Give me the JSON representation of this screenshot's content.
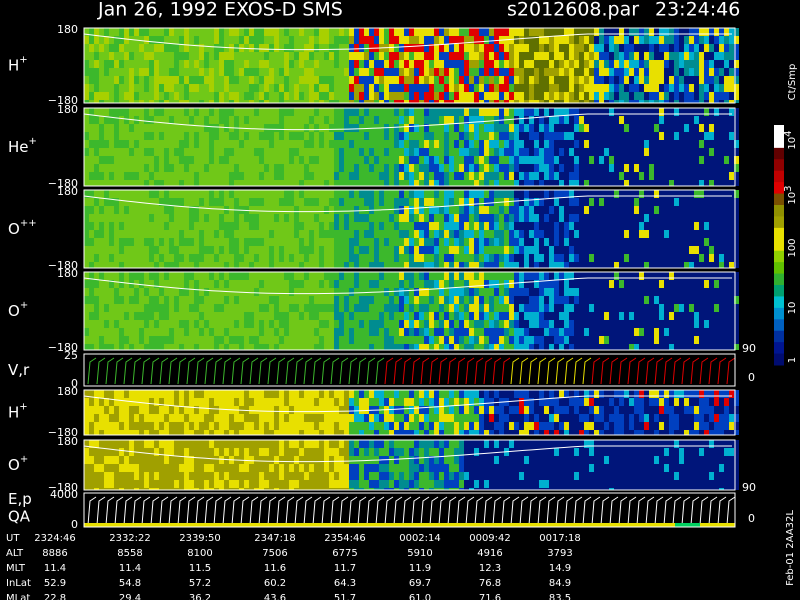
{
  "header": {
    "title": "Jan 26, 1992   EXOS-D SMS",
    "file": "s2012608.par",
    "time": "23:24:46"
  },
  "panels": [
    {
      "label": "H",
      "charge": "+",
      "top": "180",
      "bottom": "−180"
    },
    {
      "label": "He",
      "charge": "+",
      "top": "180",
      "bottom": "−180"
    },
    {
      "label": "O",
      "charge": "++",
      "top": "180",
      "bottom": "−180"
    },
    {
      "label": "O",
      "charge": "+",
      "top": "180",
      "bottom": "−180"
    },
    {
      "label": "V,r",
      "top": "25",
      "bottom": "0",
      "right_top": "90",
      "right_bottom": "0"
    },
    {
      "label": "H",
      "charge": "+",
      "top": "180",
      "bottom": "−180"
    },
    {
      "label": "O",
      "charge": "+",
      "top": "180",
      "bottom": "−180"
    },
    {
      "label": "E,p",
      "label2": "QA",
      "top": "4000",
      "bottom": "0",
      "right_top": "90",
      "right_bottom": "0"
    }
  ],
  "colorbar": {
    "unit": "Ct/Smp",
    "labels": [
      {
        "base": "10",
        "exp": "4"
      },
      {
        "base": "10",
        "exp": "3"
      },
      {
        "base": "100"
      },
      {
        "base": "10"
      },
      {
        "base": "1"
      }
    ]
  },
  "footer_note": "Feb-01 2AA32L",
  "table": {
    "rows": [
      [
        "UT",
        "2324:46",
        "2332:22",
        "2339:50",
        "2347:18",
        "2354:46",
        "0002:14",
        "0009:42",
        "0017:18"
      ],
      [
        "ALT",
        "8886",
        "8558",
        "8100",
        "7506",
        "6775",
        "5910",
        "4916",
        "3793"
      ],
      [
        "MLT",
        "11.4",
        "11.4",
        "11.5",
        "11.6",
        "11.7",
        "11.9",
        "12.3",
        "14.9"
      ],
      [
        "InLat",
        "52.9",
        "54.8",
        "57.2",
        "60.2",
        "64.3",
        "69.7",
        "76.8",
        "84.9"
      ],
      [
        "MLat",
        "22.8",
        "29.4",
        "36.2",
        "43.6",
        "51.7",
        "61.0",
        "71.6",
        "83.5"
      ]
    ]
  }
}
